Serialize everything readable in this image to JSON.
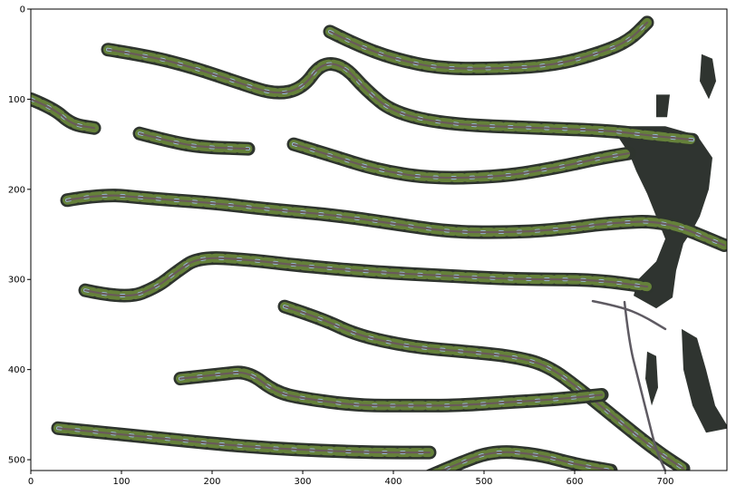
{
  "chart_data": {
    "type": "image",
    "xlim": [
      0,
      768
    ],
    "ylim": [
      512,
      0
    ],
    "x_ticks": [
      0,
      100,
      200,
      300,
      400,
      500,
      600,
      700
    ],
    "y_ticks": [
      0,
      100,
      200,
      300,
      400,
      500
    ],
    "x_tick_labels": [
      "0",
      "100",
      "200",
      "300",
      "400",
      "500",
      "600",
      "700"
    ],
    "y_tick_labels": [
      "0",
      "100",
      "200",
      "300",
      "400",
      "500"
    ],
    "grid": false,
    "content": "masked photograph of tree branches with foliage on white background",
    "colors": {
      "foliage": "#6f8f3c",
      "shadow": "#2e342e",
      "sky": "#9ec3e8",
      "bark": "#6a5a5a"
    },
    "branches": [
      {
        "points": [
          [
            85,
            45
          ],
          [
            130,
            52
          ],
          [
            180,
            65
          ],
          [
            230,
            82
          ],
          [
            270,
            95
          ],
          [
            300,
            88
          ],
          [
            320,
            60
          ],
          [
            345,
            62
          ],
          [
            370,
            90
          ],
          [
            400,
            115
          ],
          [
            460,
            128
          ],
          [
            560,
            132
          ],
          [
            640,
            135
          ],
          [
            680,
            140
          ],
          [
            730,
            145
          ]
        ]
      },
      {
        "points": [
          [
            330,
            25
          ],
          [
            360,
            40
          ],
          [
            400,
            55
          ],
          [
            450,
            66
          ],
          [
            520,
            66
          ],
          [
            580,
            62
          ],
          [
            630,
            48
          ],
          [
            660,
            35
          ],
          [
            680,
            15
          ]
        ]
      },
      {
        "points": [
          [
            0,
            100
          ],
          [
            25,
            110
          ],
          [
            45,
            128
          ],
          [
            70,
            132
          ]
        ]
      },
      {
        "points": [
          [
            120,
            138
          ],
          [
            150,
            146
          ],
          [
            185,
            153
          ],
          [
            240,
            155
          ]
        ]
      },
      {
        "points": [
          [
            290,
            150
          ],
          [
            330,
            162
          ],
          [
            380,
            178
          ],
          [
            440,
            188
          ],
          [
            520,
            186
          ],
          [
            580,
            176
          ],
          [
            625,
            166
          ],
          [
            660,
            160
          ]
        ]
      },
      {
        "points": [
          [
            40,
            212
          ],
          [
            80,
            205
          ],
          [
            130,
            210
          ],
          [
            200,
            215
          ],
          [
            260,
            222
          ],
          [
            330,
            228
          ],
          [
            400,
            238
          ],
          [
            460,
            247
          ],
          [
            520,
            248
          ],
          [
            580,
            245
          ],
          [
            640,
            237
          ],
          [
            700,
            235
          ],
          [
            765,
            262
          ]
        ]
      },
      {
        "points": [
          [
            60,
            312
          ],
          [
            105,
            322
          ],
          [
            140,
            308
          ],
          [
            160,
            292
          ],
          [
            185,
            275
          ],
          [
            240,
            278
          ],
          [
            300,
            285
          ],
          [
            380,
            292
          ],
          [
            460,
            296
          ],
          [
            540,
            300
          ],
          [
            620,
            300
          ],
          [
            680,
            308
          ]
        ]
      },
      {
        "points": [
          [
            280,
            330
          ],
          [
            320,
            343
          ],
          [
            360,
            362
          ],
          [
            420,
            375
          ],
          [
            480,
            380
          ],
          [
            530,
            385
          ],
          [
            570,
            395
          ],
          [
            610,
            425
          ],
          [
            650,
            458
          ],
          [
            690,
            490
          ],
          [
            720,
            510
          ]
        ]
      },
      {
        "points": [
          [
            165,
            410
          ],
          [
            210,
            405
          ],
          [
            240,
            402
          ],
          [
            270,
            425
          ],
          [
            300,
            432
          ],
          [
            360,
            440
          ],
          [
            420,
            440
          ],
          [
            470,
            440
          ],
          [
            530,
            436
          ],
          [
            580,
            433
          ],
          [
            630,
            428
          ]
        ]
      },
      {
        "points": [
          [
            30,
            465
          ],
          [
            80,
            470
          ],
          [
            140,
            476
          ],
          [
            200,
            482
          ],
          [
            260,
            487
          ],
          [
            320,
            490
          ],
          [
            380,
            492
          ],
          [
            440,
            492
          ]
        ]
      },
      {
        "points": [
          [
            440,
            518
          ],
          [
            470,
            505
          ],
          [
            510,
            490
          ],
          [
            560,
            494
          ],
          [
            600,
            505
          ],
          [
            640,
            512
          ]
        ]
      }
    ],
    "twigs": [
      {
        "points": [
          [
            620,
            324
          ],
          [
            650,
            330
          ],
          [
            675,
            340
          ],
          [
            700,
            355
          ]
        ]
      },
      {
        "points": [
          [
            655,
            325
          ],
          [
            660,
            370
          ],
          [
            670,
            410
          ],
          [
            680,
            450
          ],
          [
            690,
            490
          ],
          [
            700,
            512
          ]
        ]
      }
    ],
    "dark_regions": [
      {
        "points": [
          [
            640,
            130
          ],
          [
            700,
            130
          ],
          [
            735,
            140
          ],
          [
            752,
            165
          ],
          [
            748,
            200
          ],
          [
            738,
            230
          ],
          [
            730,
            245
          ],
          [
            720,
            260
          ],
          [
            712,
            290
          ],
          [
            708,
            320
          ],
          [
            690,
            332
          ],
          [
            665,
            318
          ],
          [
            670,
            300
          ],
          [
            690,
            280
          ],
          [
            700,
            255
          ],
          [
            690,
            230
          ],
          [
            680,
            205
          ],
          [
            668,
            180
          ],
          [
            660,
            160
          ]
        ]
      },
      {
        "points": [
          [
            690,
            95
          ],
          [
            705,
            95
          ],
          [
            702,
            120
          ],
          [
            690,
            120
          ]
        ]
      },
      {
        "points": [
          [
            740,
            50
          ],
          [
            752,
            55
          ],
          [
            756,
            80
          ],
          [
            748,
            100
          ],
          [
            738,
            80
          ]
        ]
      },
      {
        "points": [
          [
            718,
            355
          ],
          [
            735,
            365
          ],
          [
            745,
            400
          ],
          [
            755,
            440
          ],
          [
            770,
            465
          ],
          [
            745,
            470
          ],
          [
            730,
            440
          ],
          [
            720,
            400
          ]
        ]
      },
      {
        "points": [
          [
            680,
            380
          ],
          [
            690,
            385
          ],
          [
            692,
            420
          ],
          [
            685,
            440
          ],
          [
            678,
            410
          ]
        ]
      }
    ]
  }
}
